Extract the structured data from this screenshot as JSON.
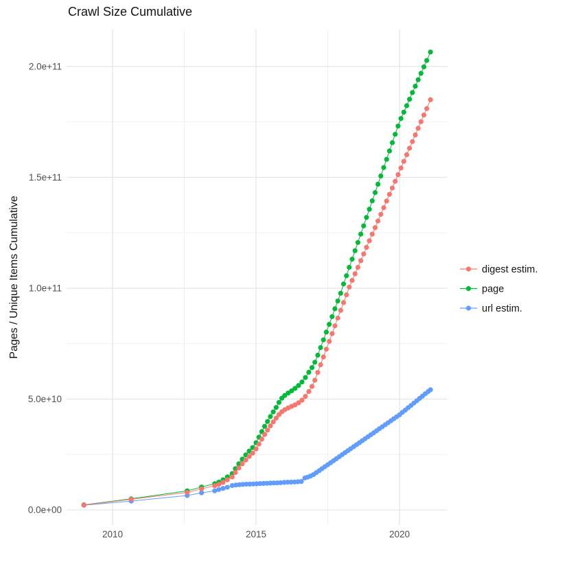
{
  "title": "Crawl Size Cumulative",
  "y_axis": {
    "label": "Pages / Unique Items Cumulative",
    "tick_labels": [
      "0.0e+00",
      "5.0e+10",
      "1.0e+11",
      "1.5e+11",
      "2.0e+11"
    ],
    "tick_values_billions": [
      0,
      50,
      100,
      150,
      200
    ],
    "minor_values_billions": [
      25,
      75,
      125,
      175
    ]
  },
  "x_axis": {
    "tick_labels": [
      "2010",
      "2015",
      "2020"
    ],
    "tick_values": [
      2010,
      2015,
      2020
    ],
    "minor_values": [
      2012.5,
      2017.5
    ]
  },
  "legend": {
    "position": "right",
    "items": [
      {
        "label": "digest estim.",
        "color": "#F8766D"
      },
      {
        "label": "page",
        "color": "#00BA38"
      },
      {
        "label": "url estim.",
        "color": "#619CFF"
      }
    ]
  },
  "colors": {
    "background": "#ffffff",
    "grid_major": "#e2e2e2",
    "grid_minor": "#f0f0f0",
    "axis_text": "#4d4d4d",
    "digest": "#F8766D",
    "page": "#00BA38",
    "url": "#619CFF"
  },
  "chart_data": {
    "type": "scatter-line",
    "title": "Crawl Size Cumulative",
    "xlabel": "",
    "ylabel": "Pages / Unique Items Cumulative",
    "x_unit": "year (decimal)",
    "y_unit": "cumulative count, billions (1e9)",
    "xlim": [
      2008.4,
      2021.7
    ],
    "ylim_billions": [
      -8,
      217
    ],
    "grid": true,
    "legend_position": "right",
    "series": [
      {
        "name": "url estim.",
        "color": "#619CFF",
        "points": [
          [
            2009.0,
            2.1
          ],
          [
            2010.65,
            4.0
          ],
          [
            2012.6,
            6.5
          ],
          [
            2013.1,
            7.7
          ],
          [
            2013.56,
            8.6
          ],
          [
            2013.7,
            9.2
          ],
          [
            2013.85,
            9.7
          ],
          [
            2014.0,
            10.2
          ],
          [
            2014.17,
            11.0
          ],
          [
            2014.3,
            11.25
          ],
          [
            2014.42,
            11.4
          ],
          [
            2014.54,
            11.5
          ],
          [
            2014.66,
            11.6
          ],
          [
            2014.78,
            11.65
          ],
          [
            2014.9,
            11.7
          ],
          [
            2015.02,
            11.8
          ],
          [
            2015.14,
            11.9
          ],
          [
            2015.26,
            11.95
          ],
          [
            2015.38,
            12.0
          ],
          [
            2015.5,
            12.1
          ],
          [
            2015.62,
            12.15
          ],
          [
            2015.74,
            12.2
          ],
          [
            2015.86,
            12.3
          ],
          [
            2015.98,
            12.4
          ],
          [
            2016.1,
            12.5
          ],
          [
            2016.22,
            12.55
          ],
          [
            2016.34,
            12.6
          ],
          [
            2016.46,
            12.7
          ],
          [
            2016.58,
            12.8
          ],
          [
            2016.7,
            14.4
          ],
          [
            2016.8,
            14.8
          ],
          [
            2016.9,
            15.3
          ],
          [
            2017.0,
            15.9
          ],
          [
            2017.1,
            16.8
          ],
          [
            2017.2,
            17.7
          ],
          [
            2017.3,
            18.6
          ],
          [
            2017.4,
            19.5
          ],
          [
            2017.5,
            20.4
          ],
          [
            2017.6,
            21.3
          ],
          [
            2017.7,
            22.2
          ],
          [
            2017.8,
            23.1
          ],
          [
            2017.9,
            24.0
          ],
          [
            2018.0,
            24.9
          ],
          [
            2018.1,
            25.8
          ],
          [
            2018.2,
            26.7
          ],
          [
            2018.3,
            27.6
          ],
          [
            2018.4,
            28.5
          ],
          [
            2018.5,
            29.4
          ],
          [
            2018.6,
            30.3
          ],
          [
            2018.7,
            31.2
          ],
          [
            2018.8,
            32.1
          ],
          [
            2018.9,
            33.0
          ],
          [
            2019.0,
            33.9
          ],
          [
            2019.1,
            34.8
          ],
          [
            2019.2,
            35.7
          ],
          [
            2019.3,
            36.6
          ],
          [
            2019.4,
            37.5
          ],
          [
            2019.5,
            38.4
          ],
          [
            2019.6,
            39.3
          ],
          [
            2019.7,
            40.2
          ],
          [
            2019.8,
            41.1
          ],
          [
            2019.9,
            42.0
          ],
          [
            2020.0,
            42.9
          ],
          [
            2020.1,
            44.0
          ],
          [
            2020.2,
            45.0
          ],
          [
            2020.3,
            46.1
          ],
          [
            2020.4,
            47.1
          ],
          [
            2020.5,
            48.2
          ],
          [
            2020.6,
            49.2
          ],
          [
            2020.7,
            50.3
          ],
          [
            2020.8,
            51.3
          ],
          [
            2020.9,
            52.4
          ],
          [
            2021.0,
            53.4
          ],
          [
            2021.08,
            54.2
          ]
        ]
      },
      {
        "name": "page",
        "color": "#00BA38",
        "points": [
          [
            2009.0,
            2.3
          ],
          [
            2010.65,
            5.0
          ],
          [
            2012.6,
            8.6
          ],
          [
            2013.1,
            10.3
          ],
          [
            2013.56,
            11.8
          ],
          [
            2013.7,
            12.5
          ],
          [
            2013.85,
            13.6
          ],
          [
            2014.0,
            14.9
          ],
          [
            2014.17,
            16.4
          ],
          [
            2014.28,
            18.6
          ],
          [
            2014.4,
            20.8
          ],
          [
            2014.52,
            22.9
          ],
          [
            2014.64,
            24.8
          ],
          [
            2014.76,
            26.5
          ],
          [
            2014.88,
            28.1
          ],
          [
            2015.0,
            30.3
          ],
          [
            2015.1,
            32.8
          ],
          [
            2015.2,
            35.3
          ],
          [
            2015.3,
            37.7
          ],
          [
            2015.4,
            39.9
          ],
          [
            2015.5,
            42.1
          ],
          [
            2015.6,
            44.2
          ],
          [
            2015.7,
            46.2
          ],
          [
            2015.8,
            48.5
          ],
          [
            2015.9,
            50.4
          ],
          [
            2016.0,
            51.6
          ],
          [
            2016.12,
            52.7
          ],
          [
            2016.24,
            53.7
          ],
          [
            2016.36,
            54.8
          ],
          [
            2016.48,
            56.1
          ],
          [
            2016.6,
            57.7
          ],
          [
            2016.72,
            59.7
          ],
          [
            2016.84,
            62.1
          ],
          [
            2016.95,
            64.2
          ],
          [
            2017.05,
            66.6
          ],
          [
            2017.15,
            69.8
          ],
          [
            2017.25,
            73.2
          ],
          [
            2017.35,
            76.7
          ],
          [
            2017.45,
            80.2
          ],
          [
            2017.55,
            83.7
          ],
          [
            2017.65,
            87.2
          ],
          [
            2017.75,
            90.7
          ],
          [
            2017.85,
            94.2
          ],
          [
            2017.95,
            97.7
          ],
          [
            2018.05,
            101.9
          ],
          [
            2018.15,
            105.6
          ],
          [
            2018.25,
            109.4
          ],
          [
            2018.35,
            113.1
          ],
          [
            2018.45,
            116.9
          ],
          [
            2018.55,
            120.6
          ],
          [
            2018.65,
            124.4
          ],
          [
            2018.75,
            128.1
          ],
          [
            2018.85,
            131.9
          ],
          [
            2018.95,
            135.6
          ],
          [
            2019.05,
            139.4
          ],
          [
            2019.15,
            143.1
          ],
          [
            2019.25,
            146.9
          ],
          [
            2019.35,
            150.6
          ],
          [
            2019.45,
            154.4
          ],
          [
            2019.55,
            158.1
          ],
          [
            2019.65,
            161.9
          ],
          [
            2019.75,
            165.6
          ],
          [
            2019.85,
            169.4
          ],
          [
            2019.95,
            173.1
          ],
          [
            2020.05,
            176.5
          ],
          [
            2020.15,
            179.4
          ],
          [
            2020.25,
            182.3
          ],
          [
            2020.35,
            185.2
          ],
          [
            2020.45,
            188.2
          ],
          [
            2020.55,
            191.1
          ],
          [
            2020.65,
            194.0
          ],
          [
            2020.75,
            196.9
          ],
          [
            2020.85,
            199.8
          ],
          [
            2020.95,
            202.7
          ],
          [
            2021.08,
            206.5
          ]
        ]
      },
      {
        "name": "digest estim.",
        "color": "#F8766D",
        "points": [
          [
            2009.0,
            2.2
          ],
          [
            2010.65,
            4.8
          ],
          [
            2012.6,
            7.9
          ],
          [
            2013.1,
            9.5
          ],
          [
            2013.56,
            10.9
          ],
          [
            2013.7,
            11.5
          ],
          [
            2013.85,
            12.4
          ],
          [
            2014.0,
            13.6
          ],
          [
            2014.17,
            14.9
          ],
          [
            2014.28,
            16.9
          ],
          [
            2014.4,
            18.9
          ],
          [
            2014.52,
            20.8
          ],
          [
            2014.64,
            22.5
          ],
          [
            2014.76,
            24.1
          ],
          [
            2014.88,
            25.6
          ],
          [
            2015.0,
            27.5
          ],
          [
            2015.1,
            29.7
          ],
          [
            2015.2,
            31.9
          ],
          [
            2015.3,
            34.0
          ],
          [
            2015.4,
            36.0
          ],
          [
            2015.5,
            37.9
          ],
          [
            2015.6,
            39.7
          ],
          [
            2015.7,
            41.4
          ],
          [
            2015.8,
            43.0
          ],
          [
            2015.9,
            44.3
          ],
          [
            2016.0,
            45.2
          ],
          [
            2016.12,
            46.0
          ],
          [
            2016.24,
            46.7
          ],
          [
            2016.36,
            47.4
          ],
          [
            2016.48,
            48.3
          ],
          [
            2016.6,
            49.5
          ],
          [
            2016.72,
            51.2
          ],
          [
            2016.84,
            53.4
          ],
          [
            2016.95,
            55.7
          ],
          [
            2017.05,
            58.5
          ],
          [
            2017.15,
            62.0
          ],
          [
            2017.25,
            65.5
          ],
          [
            2017.35,
            69.0
          ],
          [
            2017.45,
            72.5
          ],
          [
            2017.55,
            76.0
          ],
          [
            2017.65,
            79.5
          ],
          [
            2017.75,
            83.0
          ],
          [
            2017.85,
            86.5
          ],
          [
            2017.95,
            90.0
          ],
          [
            2018.05,
            93.5
          ],
          [
            2018.15,
            97.0
          ],
          [
            2018.25,
            100.5
          ],
          [
            2018.35,
            103.5
          ],
          [
            2018.45,
            106.5
          ],
          [
            2018.55,
            109.4
          ],
          [
            2018.65,
            112.4
          ],
          [
            2018.75,
            115.4
          ],
          [
            2018.85,
            118.4
          ],
          [
            2018.95,
            121.4
          ],
          [
            2019.05,
            124.4
          ],
          [
            2019.15,
            127.3
          ],
          [
            2019.25,
            130.3
          ],
          [
            2019.35,
            133.3
          ],
          [
            2019.45,
            136.3
          ],
          [
            2019.55,
            139.3
          ],
          [
            2019.65,
            142.3
          ],
          [
            2019.75,
            145.2
          ],
          [
            2019.85,
            148.2
          ],
          [
            2019.95,
            151.2
          ],
          [
            2020.05,
            154.2
          ],
          [
            2020.15,
            157.2
          ],
          [
            2020.25,
            160.2
          ],
          [
            2020.35,
            163.1
          ],
          [
            2020.45,
            166.1
          ],
          [
            2020.55,
            169.1
          ],
          [
            2020.65,
            172.1
          ],
          [
            2020.75,
            175.1
          ],
          [
            2020.85,
            178.1
          ],
          [
            2020.95,
            181.0
          ],
          [
            2021.08,
            185.0
          ]
        ]
      }
    ]
  }
}
